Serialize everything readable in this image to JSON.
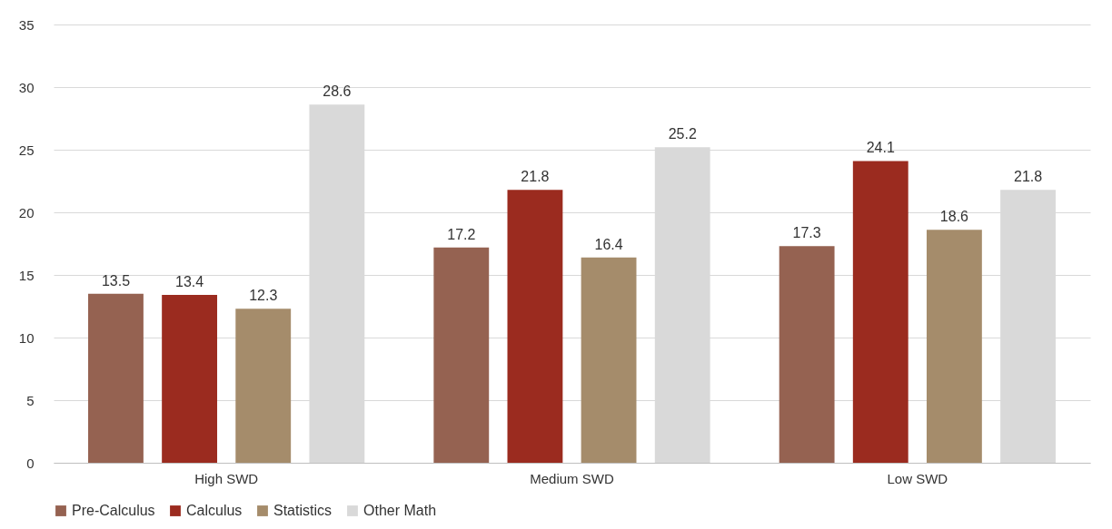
{
  "chart_data": {
    "type": "bar",
    "categories": [
      "High SWD",
      "Medium SWD",
      "Low SWD"
    ],
    "series": [
      {
        "name": "Pre-Calculus",
        "color": "#956251",
        "values": [
          13.5,
          17.2,
          17.3
        ]
      },
      {
        "name": "Calculus",
        "color": "#9b2b1f",
        "values": [
          13.4,
          21.8,
          24.1
        ]
      },
      {
        "name": "Statistics",
        "color": "#a58c6b",
        "values": [
          12.3,
          16.4,
          18.6
        ]
      },
      {
        "name": "Other Math",
        "color": "#d9d9d9",
        "values": [
          28.6,
          25.2,
          21.8
        ]
      }
    ],
    "ylim": [
      0,
      35
    ],
    "yticks": [
      0,
      5,
      10,
      15,
      20,
      25,
      30,
      35
    ],
    "grid": "y",
    "legend": "bottom",
    "data_labels": true
  }
}
